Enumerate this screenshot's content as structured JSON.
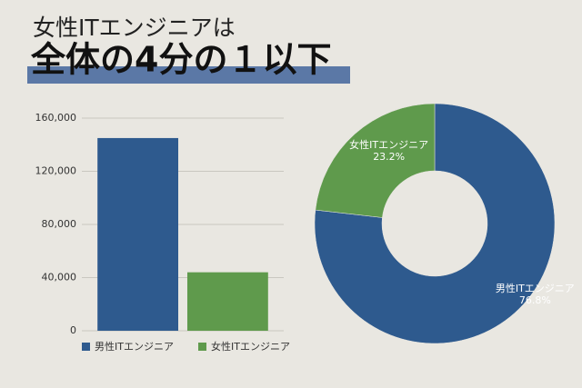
{
  "header": {
    "title": "女性ITエンジニアは",
    "subtitle": "全体の4分の１以下"
  },
  "chart_data": [
    {
      "type": "bar",
      "categories": [
        null
      ],
      "series": [
        {
          "name": "男性ITエンジニア",
          "color": "#2e5a8e",
          "values": [
            145000
          ]
        },
        {
          "name": "女性ITエンジニア",
          "color": "#5f9a4c",
          "values": [
            44000
          ]
        }
      ],
      "ylim": [
        0,
        160000
      ],
      "yticks": [
        0,
        {
          "value": 40000,
          "label": "40,000"
        },
        {
          "value": 80000,
          "label": "80,000"
        },
        {
          "value": 120000,
          "label": "120,000"
        },
        {
          "value": 160000,
          "label": "160,000"
        }
      ],
      "grid": true,
      "legend": "bottom"
    },
    {
      "type": "pie",
      "donut": true,
      "categories": [
        "男性ITエンジニア",
        "女性ITエンジニア"
      ],
      "values": [
        76.8,
        23.2
      ],
      "value_labels": [
        "76.8%",
        "23.2%"
      ],
      "colors": [
        "#2e5a8e",
        "#5f9a4c"
      ]
    }
  ]
}
